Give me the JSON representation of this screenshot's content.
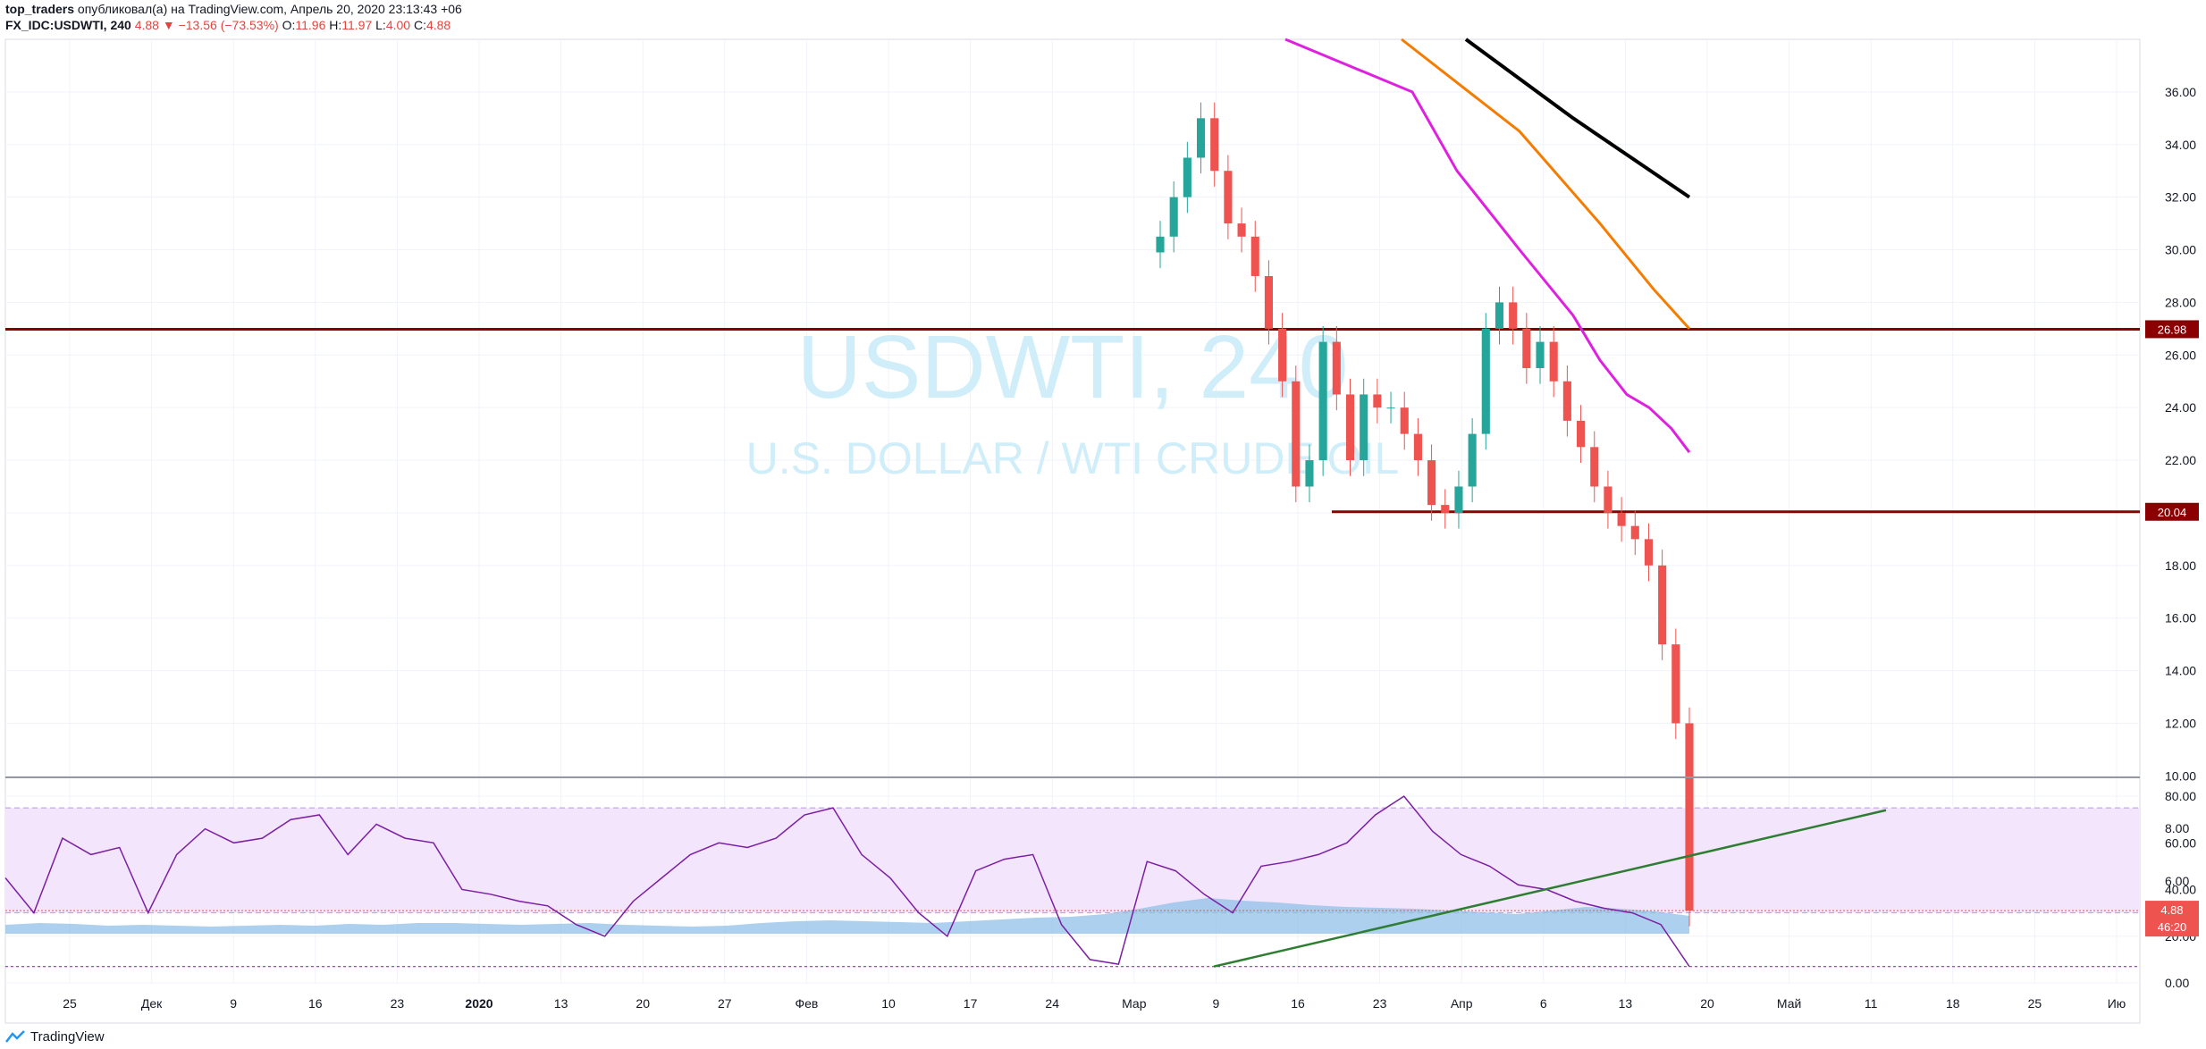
{
  "header": {
    "publisher": "top_traders",
    "published_text": "опубликовал(а) на TradingView.com, Апрель 20, 2020 23:13:43 +06",
    "symbol": "FX_IDC:USDWTI, 240",
    "last": "4.88",
    "change": "−13.56 (−73.53%)",
    "o_label": "O:",
    "o": "11.96",
    "h_label": "H:",
    "h": "11.97",
    "l_label": "L:",
    "l": "4.00",
    "c_label": "C:",
    "c": "4.88"
  },
  "watermark": {
    "symbol": "USDWTI, 240",
    "description": "U.S. DOLLAR / WTI CRUDE OIL"
  },
  "footer": {
    "brand": "TradingView"
  },
  "colors": {
    "up": "#26a69a",
    "down": "#ef5350",
    "level": "#8b0000",
    "ma_magenta": "#e020e0",
    "ma_orange": "#f57c00",
    "ma_black": "#000000",
    "volume": "#90c0e8",
    "rsi": "#7b1fa2",
    "rsi_band": "#f3e5fc",
    "trendline": "#2e7d32",
    "watermark": "#cfeef9"
  },
  "chart_data": [
    {
      "type": "line",
      "pane": "price",
      "ylim": [
        4,
        38
      ],
      "y_ticks": [
        "36.00",
        "34.00",
        "32.00",
        "30.00",
        "28.00",
        "26.00",
        "24.00",
        "22.00",
        "20.00",
        "18.00",
        "16.00",
        "14.00",
        "12.00",
        "10.00",
        "8.00",
        "6.00"
      ],
      "x_ticks": [
        "25",
        "Дек",
        "9",
        "16",
        "23",
        "2020",
        "13",
        "20",
        "27",
        "Фев",
        "10",
        "17",
        "24",
        "Мар",
        "9",
        "16",
        "23",
        "Апр",
        "6",
        "13",
        "20",
        "Май",
        "11",
        "18",
        "25",
        "Ию"
      ],
      "price_close": [
        30.5,
        32,
        33.5,
        35,
        33,
        31,
        30.5,
        29,
        27,
        25,
        21,
        22,
        26.5,
        24.5,
        22,
        24.5,
        24,
        24,
        23,
        22,
        20.3,
        20,
        21,
        23,
        27,
        28,
        27,
        25.5,
        26.5,
        25,
        23.5,
        22.5,
        21,
        20,
        19.5,
        19,
        18,
        15,
        12,
        4.88
      ],
      "levels": [
        {
          "name": "resistance",
          "value": 26.98,
          "label": "26.98"
        },
        {
          "name": "support",
          "value": 20.04,
          "label": "20.04"
        }
      ],
      "last_price": {
        "value": 4.88,
        "label": "4.88",
        "countdown": "46:20"
      },
      "moving_averages": [
        {
          "values": [
            38,
            36,
            33,
            30,
            27.5,
            25.8,
            24.5,
            24,
            23.2,
            22.3
          ]
        },
        {
          "values": [
            38,
            34.5,
            31,
            28.5,
            27
          ]
        },
        {
          "values": [
            38,
            35,
            32
          ]
        }
      ]
    },
    {
      "type": "area",
      "pane": "volume",
      "values": [
        10,
        12,
        11,
        9,
        10,
        9,
        8,
        9,
        10,
        9,
        11,
        10,
        12,
        12,
        11,
        10,
        11,
        12,
        10,
        9,
        8,
        9,
        12,
        14,
        15,
        14,
        13,
        12,
        14,
        16,
        18,
        19,
        22,
        28,
        35,
        40,
        37,
        35,
        32,
        30,
        29,
        28,
        26,
        24,
        22,
        26,
        30,
        28,
        25,
        20
      ]
    },
    {
      "type": "line",
      "pane": "rsi",
      "ylim": [
        0,
        85
      ],
      "y_ticks": [
        "80.00",
        "60.00",
        "40.00",
        "20.00",
        "0.00"
      ],
      "band": [
        30,
        75
      ],
      "oversold_line": 7,
      "values": [
        45,
        30,
        62,
        55,
        58,
        30,
        55,
        66,
        60,
        62,
        70,
        72,
        55,
        68,
        62,
        60,
        40,
        38,
        35,
        33,
        25,
        20,
        35,
        45,
        55,
        60,
        58,
        62,
        72,
        75,
        55,
        45,
        30,
        20,
        48,
        53,
        55,
        25,
        10,
        8,
        52,
        48,
        38,
        30,
        50,
        52,
        55,
        60,
        72,
        80,
        65,
        55,
        50,
        42,
        40,
        35,
        32,
        30,
        25,
        7
      ],
      "trendline": {
        "from_value": 7,
        "to_value": 74
      }
    }
  ]
}
